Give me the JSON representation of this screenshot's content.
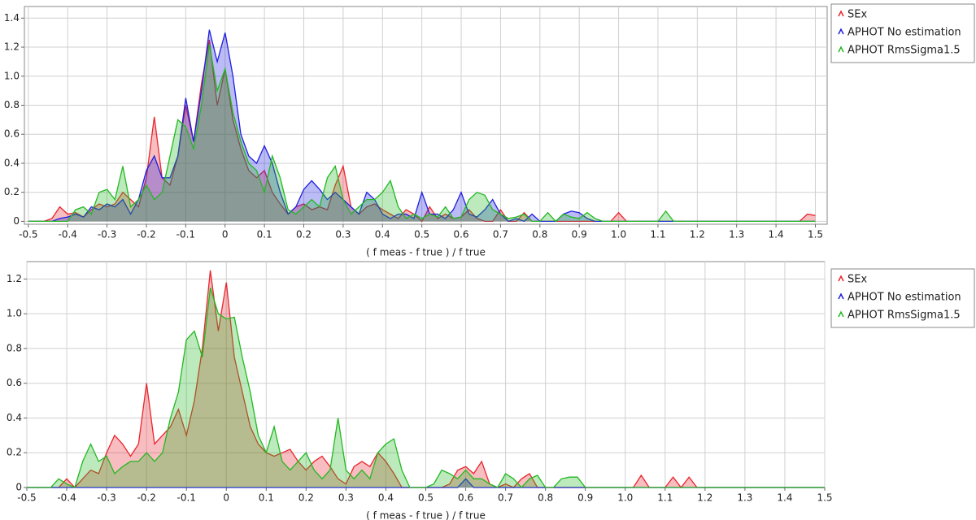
{
  "chart_data": [
    {
      "type": "area",
      "x_label": "( f meas - f true ) / f true",
      "x": [
        -0.5,
        -0.48,
        -0.46,
        -0.44,
        -0.42,
        -0.4,
        -0.38,
        -0.36,
        -0.34,
        -0.32,
        -0.3,
        -0.28,
        -0.26,
        -0.24,
        -0.22,
        -0.2,
        -0.18,
        -0.16,
        -0.14,
        -0.12,
        -0.1,
        -0.08,
        -0.06,
        -0.04,
        -0.02,
        0,
        0.02,
        0.04,
        0.06,
        0.08,
        0.1,
        0.12,
        0.14,
        0.16,
        0.18,
        0.2,
        0.22,
        0.24,
        0.26,
        0.28,
        0.3,
        0.32,
        0.34,
        0.36,
        0.38,
        0.4,
        0.42,
        0.44,
        0.46,
        0.48,
        0.5,
        0.52,
        0.54,
        0.56,
        0.58,
        0.6,
        0.62,
        0.64,
        0.66,
        0.68,
        0.7,
        0.72,
        0.74,
        0.76,
        0.78,
        0.8,
        0.82,
        0.84,
        0.86,
        0.88,
        0.9,
        0.92,
        0.94,
        0.96,
        0.98,
        1,
        1.02,
        1.04,
        1.06,
        1.08,
        1.1,
        1.12,
        1.14,
        1.16,
        1.18,
        1.2,
        1.22,
        1.24,
        1.26,
        1.28,
        1.3,
        1.32,
        1.34,
        1.36,
        1.38,
        1.4,
        1.42,
        1.44,
        1.46,
        1.48,
        1.5
      ],
      "series": [
        {
          "name": "SEx",
          "color": "#e8262d",
          "values": [
            0,
            0,
            0,
            0.02,
            0.1,
            0.05,
            0.06,
            0.03,
            0.08,
            0.12,
            0.1,
            0.12,
            0.2,
            0.15,
            0.1,
            0.3,
            0.72,
            0.3,
            0.25,
            0.45,
            0.8,
            0.55,
            0.95,
            1.25,
            0.8,
            1.05,
            0.7,
            0.5,
            0.35,
            0.3,
            0.35,
            0.2,
            0.12,
            0.05,
            0.1,
            0.12,
            0.08,
            0.1,
            0.08,
            0.25,
            0.38,
            0.1,
            0.05,
            0.1,
            0.12,
            0.08,
            0.05,
            0.02,
            0.08,
            0.05,
            0,
            0.1,
            0.02,
            0.05,
            0.02,
            0.03,
            0.08,
            0.02,
            0,
            0,
            0.08,
            0,
            0,
            0.06,
            0,
            0,
            0,
            0,
            0,
            0,
            0,
            0,
            0,
            0,
            0,
            0.06,
            0,
            0,
            0,
            0,
            0,
            0,
            0,
            0,
            0,
            0,
            0,
            0,
            0,
            0,
            0,
            0,
            0,
            0,
            0,
            0,
            0,
            0,
            0,
            0.05,
            0.04
          ]
        },
        {
          "name": "APHOT No estimation",
          "color": "#1f1fe0",
          "values": [
            0,
            0,
            0,
            0,
            0.02,
            0.03,
            0.05,
            0.03,
            0.1,
            0.08,
            0.12,
            0.1,
            0.15,
            0.05,
            0.15,
            0.35,
            0.45,
            0.3,
            0.3,
            0.45,
            0.85,
            0.55,
            0.9,
            1.32,
            1.1,
            1.3,
            1.0,
            0.6,
            0.45,
            0.4,
            0.52,
            0.4,
            0.2,
            0.05,
            0.1,
            0.22,
            0.28,
            0.22,
            0.15,
            0.2,
            0.15,
            0.1,
            0.05,
            0.2,
            0.15,
            0.05,
            0.02,
            0.05,
            0.05,
            0.02,
            0.2,
            0.05,
            0.05,
            0.02,
            0.08,
            0.2,
            0.05,
            0.03,
            0.08,
            0.15,
            0.05,
            0,
            0.02,
            0,
            0.05,
            0,
            0,
            0,
            0.05,
            0.07,
            0.06,
            0.02,
            0,
            0,
            0,
            0,
            0,
            0,
            0,
            0,
            0,
            0,
            0,
            0,
            0,
            0,
            0,
            0,
            0,
            0,
            0,
            0,
            0,
            0,
            0,
            0,
            0,
            0,
            0,
            0,
            0
          ]
        },
        {
          "name": "APHOT RmsSigma1.5",
          "color": "#22b822",
          "values": [
            0,
            0,
            0,
            0,
            0,
            0,
            0.08,
            0.1,
            0.05,
            0.2,
            0.22,
            0.15,
            0.38,
            0.1,
            0.15,
            0.25,
            0.15,
            0.2,
            0.45,
            0.7,
            0.65,
            0.5,
            0.8,
            1.22,
            0.9,
            1.05,
            0.75,
            0.55,
            0.4,
            0.35,
            0.2,
            0.45,
            0.3,
            0.08,
            0.05,
            0.1,
            0.15,
            0.1,
            0.3,
            0.38,
            0.15,
            0.05,
            0.1,
            0.15,
            0.15,
            0.2,
            0.28,
            0.1,
            0.02,
            0.05,
            0.02,
            0.05,
            0.03,
            0.1,
            0.02,
            0.03,
            0.15,
            0.2,
            0.18,
            0.08,
            0.05,
            0.02,
            0.03,
            0.05,
            0,
            0,
            0.06,
            0,
            0.05,
            0.03,
            0.02,
            0.06,
            0.02,
            0,
            0,
            0,
            0,
            0,
            0,
            0,
            0,
            0.07,
            0,
            0,
            0,
            0,
            0,
            0,
            0,
            0,
            0,
            0,
            0,
            0,
            0,
            0,
            0,
            0,
            0,
            0,
            0
          ]
        }
      ],
      "xlim": [
        -0.51,
        1.53
      ],
      "ylim": [
        -0.02,
        1.48
      ],
      "xticks": [
        -0.5,
        -0.4,
        -0.3,
        -0.2,
        -0.1,
        0,
        0.1,
        0.2,
        0.3,
        0.4,
        0.5,
        0.6,
        0.7,
        0.8,
        0.9,
        {
          "value": 1,
          "label": "1.0"
        },
        1.1,
        1.2,
        1.3,
        1.4,
        1.5
      ],
      "yticks": [
        0,
        0.2,
        0.4,
        0.6,
        0.8,
        {
          "value": 1,
          "label": "1.0"
        },
        1.2,
        1.4
      ],
      "grid": true,
      "legend": "right"
    },
    {
      "type": "area",
      "x_label": "( f meas - f true ) / f true",
      "x": [
        -0.5,
        -0.48,
        -0.46,
        -0.44,
        -0.42,
        -0.4,
        -0.38,
        -0.36,
        -0.34,
        -0.32,
        -0.3,
        -0.28,
        -0.26,
        -0.24,
        -0.22,
        -0.2,
        -0.18,
        -0.16,
        -0.14,
        -0.12,
        -0.1,
        -0.08,
        -0.06,
        -0.04,
        -0.02,
        0,
        0.02,
        0.04,
        0.06,
        0.08,
        0.1,
        0.12,
        0.14,
        0.16,
        0.18,
        0.2,
        0.22,
        0.24,
        0.26,
        0.28,
        0.3,
        0.32,
        0.34,
        0.36,
        0.38,
        0.4,
        0.42,
        0.44,
        0.46,
        0.48,
        0.5,
        0.52,
        0.54,
        0.56,
        0.58,
        0.6,
        0.62,
        0.64,
        0.66,
        0.68,
        0.7,
        0.72,
        0.74,
        0.76,
        0.78,
        0.8,
        0.82,
        0.84,
        0.86,
        0.88,
        0.9,
        0.92,
        0.94,
        0.96,
        0.98,
        1,
        1.02,
        1.04,
        1.06,
        1.08,
        1.1,
        1.12,
        1.14,
        1.16,
        1.18,
        1.2,
        1.22,
        1.24,
        1.26,
        1.28,
        1.3,
        1.32,
        1.34,
        1.36,
        1.38,
        1.4,
        1.42,
        1.44,
        1.46,
        1.48,
        1.5
      ],
      "series": [
        {
          "name": "SEx",
          "color": "#e8262d",
          "values": [
            0,
            0,
            0,
            0,
            0,
            0.05,
            0,
            0.05,
            0.1,
            0.08,
            0.2,
            0.3,
            0.25,
            0.18,
            0.25,
            0.6,
            0.25,
            0.3,
            0.35,
            0.45,
            0.3,
            0.5,
            0.8,
            1.25,
            0.9,
            1.18,
            0.75,
            0.55,
            0.35,
            0.25,
            0.2,
            0.18,
            0.2,
            0.22,
            0.15,
            0.1,
            0.15,
            0.18,
            0.12,
            0.05,
            0.02,
            0.12,
            0.15,
            0.12,
            0.2,
            0.15,
            0.08,
            0,
            0,
            0,
            0,
            0,
            0,
            0.02,
            0.1,
            0.12,
            0.08,
            0.15,
            0.02,
            0,
            0.02,
            0,
            0.05,
            0.08,
            0,
            0,
            0,
            0,
            0,
            0,
            0,
            0,
            0,
            0,
            0,
            0,
            0,
            0.07,
            0,
            0,
            0,
            0.06,
            0,
            0.06,
            0,
            0,
            0,
            0,
            0,
            0,
            0,
            0,
            0,
            0,
            0,
            0,
            0,
            0,
            0,
            0,
            0
          ]
        },
        {
          "name": "APHOT No estimation",
          "color": "#1f1fe0",
          "values": [
            0,
            0,
            0,
            0,
            0,
            0,
            0,
            0,
            0,
            0,
            0,
            0,
            0,
            0,
            0,
            0,
            0,
            0,
            0,
            0,
            0,
            0,
            0,
            0,
            0,
            0,
            0,
            0,
            0,
            0,
            0,
            0,
            0,
            0,
            0,
            0,
            0,
            0,
            0,
            0,
            0,
            0,
            0,
            0,
            0,
            0,
            0,
            0,
            0,
            0,
            0,
            0,
            0,
            0,
            0,
            0.05,
            0,
            0,
            0,
            0,
            0,
            0,
            0,
            0,
            0,
            0,
            0,
            0,
            0,
            0,
            0,
            0,
            0,
            0,
            0,
            0,
            0,
            0,
            0,
            0,
            0,
            0,
            0,
            0,
            0,
            0,
            0,
            0,
            0,
            0,
            0,
            0,
            0,
            0,
            0,
            0,
            0,
            0,
            0,
            0,
            0
          ]
        },
        {
          "name": "APHOT RmsSigma1.5",
          "color": "#22b822",
          "values": [
            0,
            0,
            0,
            0,
            0.05,
            0.02,
            0,
            0.15,
            0.25,
            0.15,
            0.18,
            0.08,
            0.12,
            0.15,
            0.15,
            0.2,
            0.15,
            0.2,
            0.4,
            0.55,
            0.85,
            0.9,
            0.75,
            1.15,
            1.0,
            0.97,
            0.98,
            0.75,
            0.55,
            0.3,
            0.2,
            0.35,
            0.15,
            0.1,
            0.15,
            0.2,
            0.1,
            0.05,
            0.1,
            0.4,
            0.1,
            0.05,
            0.1,
            0.05,
            0.2,
            0.25,
            0.28,
            0.1,
            0,
            0,
            0,
            0.02,
            0.1,
            0.08,
            0.05,
            0.1,
            0.05,
            0.05,
            0.02,
            0,
            0.08,
            0.05,
            0,
            0.05,
            0.07,
            0,
            0,
            0.05,
            0.06,
            0.06,
            0,
            0,
            0,
            0,
            0,
            0,
            0,
            0,
            0,
            0,
            0,
            0,
            0,
            0,
            0,
            0,
            0,
            0,
            0,
            0,
            0,
            0,
            0,
            0,
            0,
            0,
            0,
            0,
            0,
            0,
            0
          ]
        }
      ],
      "xlim": [
        -0.5,
        1.5
      ],
      "ylim": [
        0,
        1.3
      ],
      "xticks": [
        -0.5,
        -0.4,
        -0.3,
        -0.2,
        -0.1,
        0,
        0.1,
        0.2,
        0.3,
        0.4,
        0.5,
        0.6,
        0.7,
        0.8,
        0.9,
        {
          "value": 1,
          "label": "1.0"
        },
        1.1,
        1.2,
        1.3,
        1.4,
        1.5
      ],
      "yticks": [
        0,
        0.2,
        0.4,
        0.6,
        0.8,
        {
          "value": 1,
          "label": "1.0"
        },
        1.2
      ],
      "grid": true,
      "legend": "right"
    }
  ]
}
